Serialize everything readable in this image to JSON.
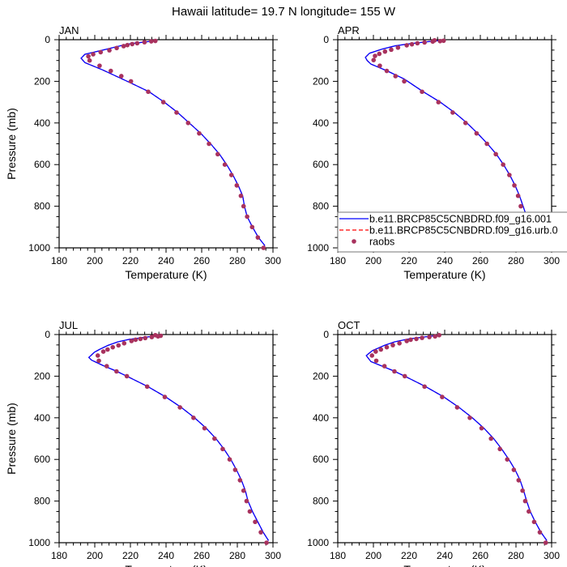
{
  "title": "Hawaii  latitude= 19.7 N longitude= 155 W",
  "colors": {
    "model1": "#0000ff",
    "model2": "#ff0000",
    "raobs": "#a8325e"
  },
  "legend": {
    "placement": "inside APR panel, bottom",
    "items": [
      {
        "label": "b.e11.BRCP85C5CNBDRD.f09_g16.001",
        "style": "solid-line"
      },
      {
        "label": "b.e11.BRCP85C5CNBDRD.f09_g16.urb.0",
        "style": "dashed-line"
      },
      {
        "label": "raobs",
        "style": "marker"
      }
    ]
  },
  "chart_data": [
    {
      "type": "line",
      "title": "JAN",
      "xlabel": "Temperature (K)",
      "ylabel": "Pressure (mb)",
      "xlim": [
        180,
        300
      ],
      "ylim": [
        1000,
        0
      ],
      "xticks": [
        180,
        200,
        220,
        240,
        260,
        280,
        300
      ],
      "yticks": [
        0,
        200,
        400,
        600,
        800,
        1000
      ],
      "raobs": {
        "p": [
          6,
          8,
          12,
          17,
          21,
          26,
          31,
          40,
          51,
          60,
          70,
          80,
          100,
          125,
          150,
          175,
          200,
          250,
          300,
          350,
          400,
          450,
          500,
          550,
          600,
          650,
          700,
          750,
          800,
          850,
          900,
          950,
          1000
        ],
        "t": [
          234,
          231.7,
          227.9,
          223.8,
          221,
          218.3,
          216.2,
          212.3,
          208.2,
          203.3,
          199.1,
          196.4,
          197.1,
          202.7,
          209,
          214.9,
          220.3,
          230,
          238.5,
          245.9,
          252.4,
          258.6,
          264.1,
          269,
          273,
          276.7,
          279.7,
          282,
          283.5,
          285.5,
          288.3,
          291.5,
          294.7
        ]
      },
      "model": {
        "p": [
          4,
          10,
          20,
          30,
          50,
          70,
          89,
          110,
          145,
          205,
          250,
          300,
          350,
          400,
          450,
          500,
          550,
          600,
          650,
          700,
          750,
          800,
          850,
          900,
          950,
          990
        ],
        "t": [
          234.5,
          229,
          219.5,
          214,
          204.4,
          194.5,
          192.3,
          194.5,
          204.4,
          219.5,
          230.5,
          239,
          246.5,
          253,
          259.5,
          265,
          270,
          274,
          277.5,
          280.5,
          283,
          284,
          285.5,
          288.5,
          291.8,
          295.5
        ]
      }
    },
    {
      "type": "line",
      "title": "APR",
      "xlabel": "Temperature (K)",
      "ylabel": "",
      "xlim": [
        180,
        300
      ],
      "ylim": [
        1000,
        0
      ],
      "xticks": [
        180,
        200,
        220,
        240,
        260,
        280,
        300
      ],
      "yticks": [
        0,
        200,
        400,
        600,
        800,
        1000
      ],
      "raobs": {
        "p": [
          3,
          5,
          7,
          9,
          13,
          17,
          22,
          27,
          38,
          48,
          57,
          68,
          78,
          98,
          125,
          150,
          175,
          200,
          250,
          300,
          350,
          400,
          450,
          500,
          550,
          600,
          650,
          700,
          750,
          800,
          850,
          900,
          950,
          1000
        ],
        "t": [
          234.3,
          239.4,
          237.4,
          233.3,
          228.7,
          224.7,
          221.6,
          218.7,
          213.8,
          210,
          206.5,
          203.3,
          200.9,
          200.1,
          203.6,
          207.5,
          212.4,
          217.3,
          227.3,
          236.5,
          244.5,
          251.7,
          257.9,
          263.7,
          268.7,
          272.8,
          276.3,
          279.1,
          281.2,
          282.7,
          284.5,
          287.6,
          291.1,
          294.6
        ]
      },
      "model": {
        "p": [
          2,
          8,
          20,
          30,
          46,
          65,
          85,
          100,
          117,
          150,
          189,
          250,
          300,
          350,
          400,
          450,
          500,
          550,
          600,
          650,
          700,
          750,
          800,
          850,
          900,
          950,
          990
        ],
        "t": [
          239.7,
          232,
          219.9,
          212,
          204.7,
          197.8,
          195.5,
          196.5,
          198.6,
          207.7,
          217.3,
          228,
          237.5,
          245.5,
          252.5,
          258.5,
          264,
          269,
          273,
          276.5,
          279.5,
          282,
          284,
          286,
          288.5,
          291.5,
          295.5
        ]
      }
    },
    {
      "type": "line",
      "title": "JUL",
      "xlabel": "Temperature (K)",
      "ylabel": "Pressure (mb)",
      "xlim": [
        180,
        300
      ],
      "ylim": [
        1000,
        0
      ],
      "xticks": [
        180,
        200,
        220,
        240,
        260,
        280,
        300
      ],
      "yticks": [
        0,
        200,
        400,
        600,
        800,
        1000
      ],
      "raobs": {
        "p": [
          3,
          6,
          9,
          12,
          17,
          21,
          25,
          31,
          42,
          52,
          61,
          72,
          82,
          101,
          126,
          152,
          177,
          200,
          250,
          300,
          350,
          400,
          450,
          500,
          550,
          600,
          650,
          700,
          750,
          800,
          850,
          900,
          950,
          1000
        ],
        "t": [
          234,
          237,
          235.5,
          232,
          228.3,
          225.6,
          222.9,
          220.6,
          216.5,
          213.3,
          210.1,
          207.2,
          204.8,
          201.7,
          202.3,
          206.7,
          212.2,
          218,
          229.4,
          239.3,
          247.8,
          255.4,
          261.6,
          267.2,
          271.8,
          275.7,
          278.8,
          281.5,
          283.5,
          285.2,
          287,
          290,
          293.2,
          296.4
        ]
      },
      "model": {
        "p": [
          4,
          10,
          23,
          35,
          52,
          70,
          85,
          110,
          123,
          150,
          175,
          200,
          250,
          300,
          350,
          400,
          450,
          500,
          550,
          600,
          650,
          700,
          750,
          800,
          850,
          900,
          950,
          990
        ],
        "t": [
          237.8,
          231,
          219.5,
          213,
          207.4,
          203,
          199.8,
          196.7,
          198.2,
          205,
          211.9,
          218,
          229.8,
          239.8,
          248.5,
          256,
          262.5,
          268,
          272.5,
          276.3,
          279.5,
          282.3,
          284.5,
          286,
          288.5,
          291.5,
          294.5,
          297.5
        ]
      }
    },
    {
      "type": "line",
      "title": "OCT",
      "xlabel": "Temperature (K)",
      "ylabel": "",
      "xlim": [
        180,
        300
      ],
      "ylim": [
        1000,
        0
      ],
      "xticks": [
        180,
        200,
        220,
        240,
        260,
        280,
        300
      ],
      "yticks": [
        0,
        200,
        400,
        600,
        800,
        1000
      ],
      "raobs": {
        "p": [
          3,
          9,
          12,
          16,
          21,
          25,
          31,
          42,
          51,
          61,
          72,
          82,
          101,
          126,
          152,
          177,
          200,
          250,
          300,
          350,
          400,
          450,
          500,
          550,
          600,
          650,
          700,
          750,
          800,
          850,
          900,
          950,
          1000
        ],
        "t": [
          236.9,
          234.6,
          231.4,
          227.3,
          224.1,
          220.9,
          218.7,
          214.6,
          210.9,
          207.5,
          204.2,
          201.3,
          199.2,
          201.6,
          206.2,
          211.8,
          217.6,
          228.7,
          238.6,
          247,
          254.1,
          260.7,
          266,
          271,
          275.1,
          278.8,
          281.5,
          283.7,
          285.2,
          287.2,
          290.2,
          293.4,
          296.7
        ]
      },
      "model": {
        "p": [
          3,
          10,
          21,
          35,
          52,
          78,
          101,
          130,
          175,
          200,
          250,
          300,
          350,
          400,
          450,
          500,
          550,
          600,
          650,
          700,
          750,
          800,
          850,
          900,
          950,
          990
        ],
        "t": [
          237,
          230,
          219.9,
          212,
          206.2,
          199.3,
          196,
          198.6,
          211.5,
          217.6,
          229.3,
          239.5,
          248,
          255.5,
          262,
          267.5,
          272,
          276,
          279.5,
          282.3,
          284.3,
          286,
          288,
          290.8,
          294,
          297.3
        ]
      }
    }
  ]
}
